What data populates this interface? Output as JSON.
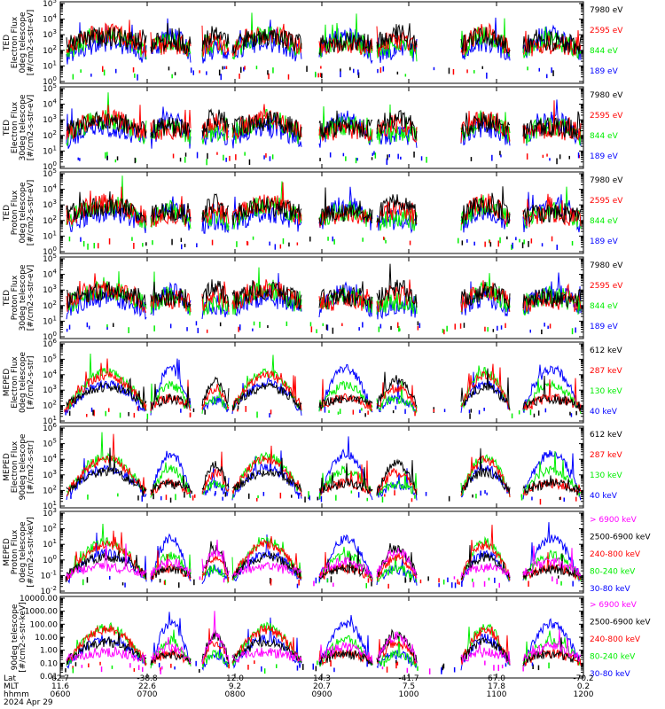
{
  "chart_data": {
    "type": "line",
    "x_axis": {
      "rows": [
        {
          "label": "Lat",
          "values": [
            "62.7",
            "-38.8",
            "12.0",
            "14.3",
            "-41.7",
            "67.0",
            "-70.2"
          ]
        },
        {
          "label": "MLT",
          "values": [
            "11.6",
            "22.6",
            "9.2",
            "20.7",
            "7.5",
            "17.8",
            "0.2"
          ]
        },
        {
          "label": "hhmm",
          "values": [
            "0600",
            "0700",
            "0800",
            "0900",
            "1000",
            "1100",
            "1200"
          ]
        }
      ],
      "date": "2024 Apr 29"
    },
    "panels": [
      {
        "ylabel": [
          "TED",
          "Electron Flux",
          "0deg telescope",
          "[#/cm2-s-str-eV]"
        ],
        "yscale": "log",
        "yticks": [
          "10^0",
          "10^1",
          "10^2",
          "10^3",
          "10^4",
          "10^5"
        ],
        "legend": [
          {
            "label": "7980 eV",
            "color": "#000000"
          },
          {
            "label": "2595 eV",
            "color": "#ff0000"
          },
          {
            "label": "844 eV",
            "color": "#00ee00"
          },
          {
            "label": "189 eV",
            "color": "#0000ff"
          }
        ]
      },
      {
        "ylabel": [
          "TED",
          "Electron Flux",
          "30deg telescope",
          "[#/cm2-s-str-eV]"
        ],
        "yscale": "log",
        "yticks": [
          "10^0",
          "10^1",
          "10^2",
          "10^3",
          "10^4",
          "10^5"
        ],
        "legend": [
          {
            "label": "7980 eV",
            "color": "#000000"
          },
          {
            "label": "2595 eV",
            "color": "#ff0000"
          },
          {
            "label": "844 eV",
            "color": "#00ee00"
          },
          {
            "label": "189 eV",
            "color": "#0000ff"
          }
        ]
      },
      {
        "ylabel": [
          "TED",
          "Proton Flux",
          "0deg telescope",
          "[#/cm2-s-str-eV]"
        ],
        "yscale": "log",
        "yticks": [
          "10^0",
          "10^1",
          "10^2",
          "10^3",
          "10^4",
          "10^5"
        ],
        "legend": [
          {
            "label": "7980 eV",
            "color": "#000000"
          },
          {
            "label": "2595 eV",
            "color": "#ff0000"
          },
          {
            "label": "844 eV",
            "color": "#00ee00"
          },
          {
            "label": "189 eV",
            "color": "#0000ff"
          }
        ]
      },
      {
        "ylabel": [
          "TED",
          "Proton Flux",
          "30deg telescope",
          "[#/cm2-s-str-eV]"
        ],
        "yscale": "log",
        "yticks": [
          "10^0",
          "10^1",
          "10^2",
          "10^3",
          "10^4",
          "10^5"
        ],
        "legend": [
          {
            "label": "7980 eV",
            "color": "#000000"
          },
          {
            "label": "2595 eV",
            "color": "#ff0000"
          },
          {
            "label": "844 eV",
            "color": "#00ee00"
          },
          {
            "label": "189 eV",
            "color": "#0000ff"
          }
        ]
      },
      {
        "ylabel": [
          "MEPED",
          "Electron Flux",
          "0deg telescope",
          "[#/cm2-s-str]"
        ],
        "yscale": "log",
        "yticks": [
          "10^1",
          "10^2",
          "10^3",
          "10^4",
          "10^5",
          "10^6"
        ],
        "legend": [
          {
            "label": "612 keV",
            "color": "#000000"
          },
          {
            "label": "287 keV",
            "color": "#ff0000"
          },
          {
            "label": "130 keV",
            "color": "#00ee00"
          },
          {
            "label": "40 keV",
            "color": "#0000ff"
          }
        ]
      },
      {
        "ylabel": [
          "MEPED",
          "Electron Flux",
          "90deg telescope",
          "[#/cm2-s-str]"
        ],
        "yscale": "log",
        "yticks": [
          "10^1",
          "10^2",
          "10^3",
          "10^4",
          "10^5",
          "10^6"
        ],
        "legend": [
          {
            "label": "612 keV",
            "color": "#000000"
          },
          {
            "label": "287 keV",
            "color": "#ff0000"
          },
          {
            "label": "130 keV",
            "color": "#00ee00"
          },
          {
            "label": "40 keV",
            "color": "#0000ff"
          }
        ]
      },
      {
        "ylabel": [
          "MEPED",
          "Proton Flux",
          "0deg telescope",
          "[#/cm2-s-str-keV]"
        ],
        "yscale": "log",
        "yticks": [
          "10^-2",
          "10^-1",
          "10^0",
          "10^1",
          "10^2",
          "10^3"
        ],
        "legend": [
          {
            "label": "> 6900 keV",
            "color": "#ff00ff"
          },
          {
            "label": "2500-6900 keV",
            "color": "#000000"
          },
          {
            "label": "240-800 keV",
            "color": "#ff0000"
          },
          {
            "label": "80-240 keV",
            "color": "#00ee00"
          },
          {
            "label": "30-80 keV",
            "color": "#0000ff"
          }
        ]
      },
      {
        "ylabel": [
          "",
          "90deg telescope",
          "[#/cm2-s-str-keV]"
        ],
        "yscale": "log",
        "yticks": [
          "0.01",
          "0.10",
          "1.00",
          "10.00",
          "100.00",
          "1000.00",
          "10000.00"
        ],
        "legend": [
          {
            "label": "> 6900 keV",
            "color": "#ff00ff"
          },
          {
            "label": "2500-6900 keV",
            "color": "#000000"
          },
          {
            "label": "240-800 keV",
            "color": "#ff0000"
          },
          {
            "label": "80-240 keV",
            "color": "#00ee00"
          },
          {
            "label": "30-80 keV",
            "color": "#0000ff"
          }
        ]
      }
    ]
  }
}
